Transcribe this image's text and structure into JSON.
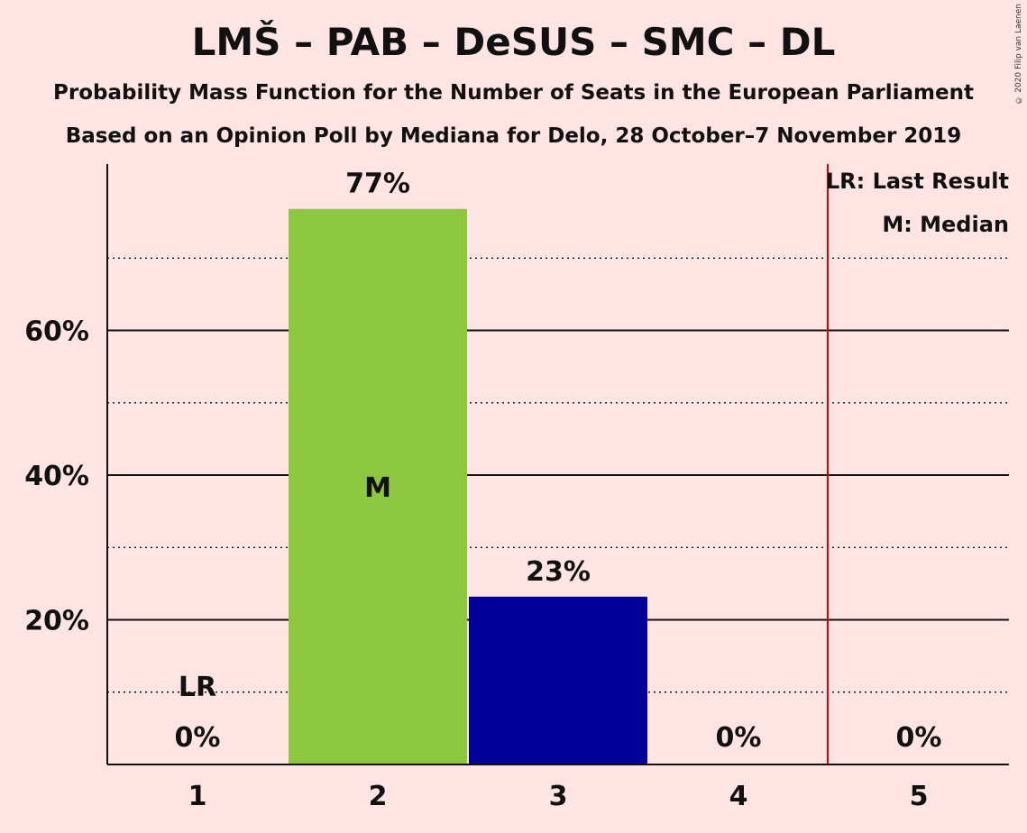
{
  "chart_data": {
    "type": "bar",
    "title": "LMŠ – PAB – DeSUS – SMC – DL",
    "subtitle": "Probability Mass Function for the Number of Seats in the European Parliament",
    "subtitle2": "Based on an Opinion Poll by Mediana for Delo, 28 October–7 November 2019",
    "copyright": "© 2020 Filip van Laenen",
    "categories": [
      "1",
      "2",
      "3",
      "4",
      "5"
    ],
    "values": [
      0,
      76.8,
      23.2,
      0,
      0
    ],
    "data_labels": [
      "0%",
      "77%",
      "23%",
      "0%",
      "0%"
    ],
    "bar_colors": [
      "#8dc63f",
      "#8dc63f",
      "#000099",
      "#000099",
      "#000099"
    ],
    "ylim": [
      0,
      83
    ],
    "yticks": [
      {
        "value": 20,
        "label": "20%"
      },
      {
        "value": 40,
        "label": "40%"
      },
      {
        "value": 60,
        "label": "60%"
      }
    ],
    "minor_gridlines": [
      10,
      30,
      50,
      70
    ],
    "last_result": {
      "seats": 1,
      "label": "LR"
    },
    "median": {
      "seats": 2,
      "label": "M"
    },
    "majority_line_after_seat": 4,
    "majority_line_color": "#e00000",
    "legend": [
      "LR: Last Result",
      "M: Median"
    ],
    "legend_position": "top-right",
    "grid": true
  }
}
